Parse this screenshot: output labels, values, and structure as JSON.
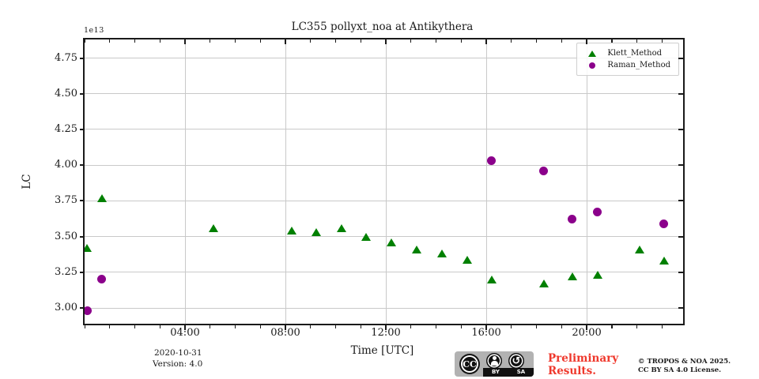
{
  "figure": {
    "offset_label": "1e13",
    "footer": {
      "date": "2020-10-31",
      "version": "Version: 4.0",
      "preliminary_line1": "Preliminary",
      "preliminary_line2": "Results.",
      "copyright_line1": "© TROPOS & NOA 2025.",
      "copyright_line2": "CC BY SA 4.0 License.",
      "cc_badge": {
        "cc": "CC",
        "by": "BY",
        "sa": "SA",
        "sa_symbol": "↺"
      }
    },
    "colors": {
      "klett_green": "#008000",
      "raman_purple": "#8B008B",
      "grid_gray": "#c9c9c9",
      "preliminary_red": "#ef382c",
      "axis_black": "#1a1a1a"
    }
  },
  "chart_data": {
    "type": "scatter",
    "title": "LC355 pollyxt_noa at Antikythera",
    "xlabel": "Time [UTC]",
    "ylabel": "LC",
    "y_offset_factor": "1e13",
    "grid": true,
    "legend_position": "upper right",
    "xlim_hours": [
      0,
      23.84
    ],
    "ylim": [
      2.89,
      4.88
    ],
    "x_major_ticks": [
      {
        "hour": 4,
        "label": "04:00"
      },
      {
        "hour": 8,
        "label": "08:00"
      },
      {
        "hour": 12,
        "label": "12:00"
      },
      {
        "hour": 16,
        "label": "16:00"
      },
      {
        "hour": 20,
        "label": "20:00"
      }
    ],
    "x_minor_tick_hours": [
      0,
      1,
      2,
      3,
      5,
      6,
      7,
      9,
      10,
      11,
      13,
      14,
      15,
      17,
      18,
      19,
      21,
      22,
      23
    ],
    "y_ticks": [
      3.0,
      3.25,
      3.5,
      3.75,
      4.0,
      4.25,
      4.5,
      4.75
    ],
    "y_tick_labels": [
      "3.00",
      "3.25",
      "3.50",
      "3.75",
      "4.00",
      "4.25",
      "4.50",
      "4.75"
    ],
    "legend": {
      "entries": [
        {
          "label": "Klett_Method",
          "marker": "triangle",
          "color": "#008000"
        },
        {
          "label": "Raman_Method",
          "marker": "circle",
          "color": "#8B008B"
        }
      ]
    },
    "series": [
      {
        "name": "Klett_Method",
        "marker": "triangle",
        "color": "#008000",
        "points": [
          {
            "time": "00:05",
            "hour": 0.09,
            "lc_1e13": 3.42
          },
          {
            "time": "00:41",
            "hour": 0.69,
            "lc_1e13": 3.77
          },
          {
            "time": "05:07",
            "hour": 5.12,
            "lc_1e13": 3.56
          },
          {
            "time": "08:16",
            "hour": 8.26,
            "lc_1e13": 3.54
          },
          {
            "time": "09:14",
            "hour": 9.24,
            "lc_1e13": 3.53
          },
          {
            "time": "10:14",
            "hour": 10.24,
            "lc_1e13": 3.56
          },
          {
            "time": "11:13",
            "hour": 11.21,
            "lc_1e13": 3.5
          },
          {
            "time": "12:14",
            "hour": 12.23,
            "lc_1e13": 3.46
          },
          {
            "time": "13:14",
            "hour": 13.24,
            "lc_1e13": 3.41
          },
          {
            "time": "14:13",
            "hour": 14.22,
            "lc_1e13": 3.38
          },
          {
            "time": "15:14",
            "hour": 15.24,
            "lc_1e13": 3.34
          },
          {
            "time": "16:13",
            "hour": 16.22,
            "lc_1e13": 3.2
          },
          {
            "time": "18:17",
            "hour": 18.29,
            "lc_1e13": 3.17
          },
          {
            "time": "19:26",
            "hour": 19.43,
            "lc_1e13": 3.22
          },
          {
            "time": "20:26",
            "hour": 20.43,
            "lc_1e13": 3.23
          },
          {
            "time": "22:07",
            "hour": 22.11,
            "lc_1e13": 3.41
          },
          {
            "time": "23:05",
            "hour": 23.08,
            "lc_1e13": 3.33
          }
        ]
      },
      {
        "name": "Raman_Method",
        "marker": "circle",
        "color": "#8B008B",
        "points": [
          {
            "time": "00:06",
            "hour": 0.1,
            "lc_1e13": 2.98
          },
          {
            "time": "00:41",
            "hour": 0.69,
            "lc_1e13": 3.2
          },
          {
            "time": "16:13",
            "hour": 16.21,
            "lc_1e13": 4.03
          },
          {
            "time": "18:17",
            "hour": 18.29,
            "lc_1e13": 3.96
          },
          {
            "time": "19:25",
            "hour": 19.42,
            "lc_1e13": 3.62
          },
          {
            "time": "20:25",
            "hour": 20.41,
            "lc_1e13": 3.67
          },
          {
            "time": "23:04",
            "hour": 23.07,
            "lc_1e13": 3.59
          }
        ]
      }
    ]
  }
}
